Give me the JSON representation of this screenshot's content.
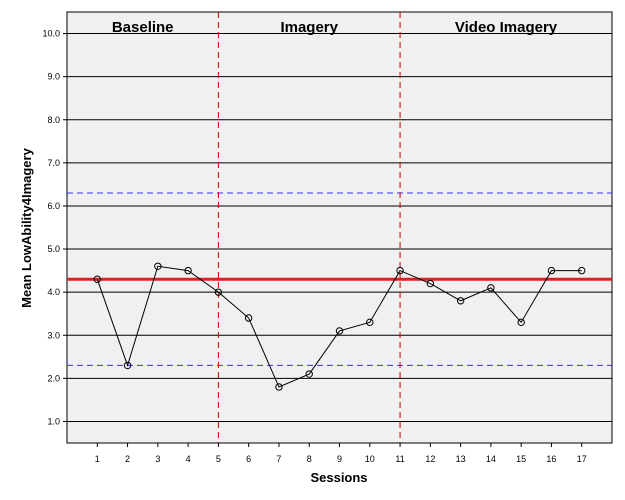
{
  "chart_data": {
    "type": "line",
    "xlabel": "Sessions",
    "ylabel": "Mean LowAbility4Imagery",
    "x": [
      1,
      2,
      3,
      4,
      5,
      6,
      7,
      8,
      9,
      10,
      11,
      12,
      13,
      14,
      15,
      16,
      17
    ],
    "series": [
      {
        "values": [
          4.3,
          2.3,
          4.6,
          4.5,
          4.0,
          3.4,
          1.8,
          2.1,
          3.1,
          3.3,
          4.5,
          4.2,
          3.8,
          4.1,
          3.3,
          4.5,
          4.5
        ]
      }
    ],
    "x_ticks": [
      "1",
      "2",
      "3",
      "4",
      "5",
      "6",
      "7",
      "8",
      "9",
      "10",
      "11",
      "12",
      "13",
      "14",
      "15",
      "16",
      "17"
    ],
    "y_ticks": [
      "1.0",
      "2.0",
      "3.0",
      "4.0",
      "5.0",
      "6.0",
      "7.0",
      "8.0",
      "9.0",
      "10.0"
    ],
    "xlim": [
      0,
      18
    ],
    "ylim": [
      0.5,
      10.5
    ],
    "phases": [
      {
        "label": "Baseline",
        "start": 0,
        "end": 5
      },
      {
        "label": "Imagery",
        "start": 5,
        "end": 11
      },
      {
        "label": "Video Imagery",
        "start": 11,
        "end": 18
      }
    ],
    "phase_dividers": [
      5,
      11
    ],
    "reference_lines": {
      "mean": 4.3,
      "upper_band": 6.3,
      "lower_band": 2.3
    },
    "grid": true,
    "colors": {
      "plot_background": "#f0f0f0",
      "series_line": "#000000",
      "mean_line": "#e02020",
      "band_line": "#3333ff",
      "divider_line": "#cc0000",
      "grid_line": "#000000"
    }
  }
}
